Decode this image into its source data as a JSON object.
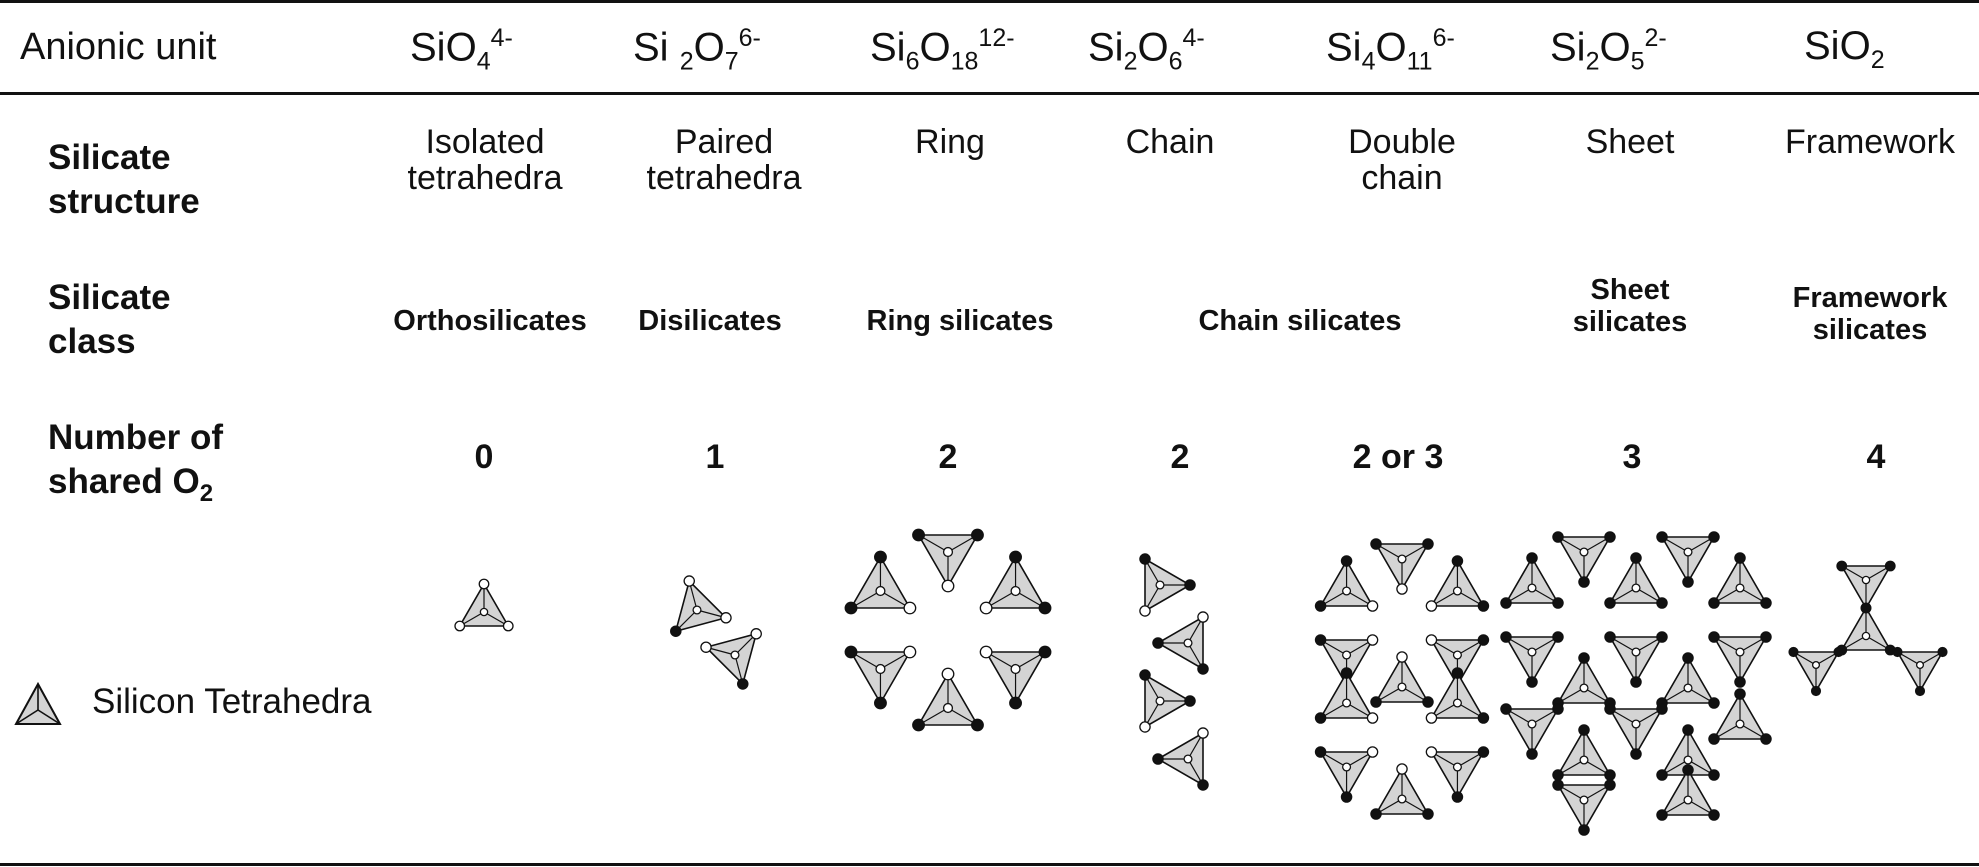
{
  "header": {
    "label": "Anionic unit"
  },
  "anionic_units": [
    {
      "base": "SiO",
      "parts": [
        [
          "Si",
          ""
        ],
        [
          "O",
          "4"
        ]
      ],
      "charge": "4-"
    },
    {
      "parts": [
        [
          "Si ",
          "2"
        ],
        [
          "O",
          "7"
        ]
      ],
      "charge": "6-"
    },
    {
      "parts": [
        [
          "Si",
          "6"
        ],
        [
          "O",
          "18"
        ]
      ],
      "charge": "12-"
    },
    {
      "parts": [
        [
          "Si",
          "2"
        ],
        [
          "O",
          "6"
        ]
      ],
      "charge": "4-"
    },
    {
      "parts": [
        [
          "Si",
          "4"
        ],
        [
          "O",
          "11"
        ]
      ],
      "charge": "6-"
    },
    {
      "parts": [
        [
          "Si",
          "2"
        ],
        [
          "O",
          "5"
        ]
      ],
      "charge": "2-"
    },
    {
      "parts": [
        [
          "SiO",
          "2"
        ]
      ],
      "charge": ""
    }
  ],
  "rows": {
    "structure_label": [
      "Silicate",
      "structure"
    ],
    "class_label": [
      "Silicate",
      "class"
    ],
    "shared_label_1": "Number of",
    "shared_label_2": "shared O",
    "shared_label_sub": "2"
  },
  "structures": [
    [
      "Isolated",
      "tetrahedra"
    ],
    [
      "Paired",
      "tetrahedra"
    ],
    [
      "Ring"
    ],
    [
      "Chain"
    ],
    [
      "Double",
      "chain"
    ],
    [
      "Sheet"
    ],
    [
      "Framework"
    ]
  ],
  "classes": [
    [
      "Orthosilicates"
    ],
    [
      "Disilicates"
    ],
    [
      "Ring silicates"
    ],
    [
      "Chain silicates"
    ],
    [
      "Sheet",
      "silicates"
    ],
    [
      "Framework",
      "silicates"
    ]
  ],
  "shared_counts": [
    "0",
    "1",
    "2",
    "2",
    "2 or 3",
    "3",
    "4"
  ],
  "legend": {
    "label": "Silicon Tetrahedra"
  },
  "colors": {
    "fill": "#d4d4d4",
    "stroke": "#111111"
  }
}
